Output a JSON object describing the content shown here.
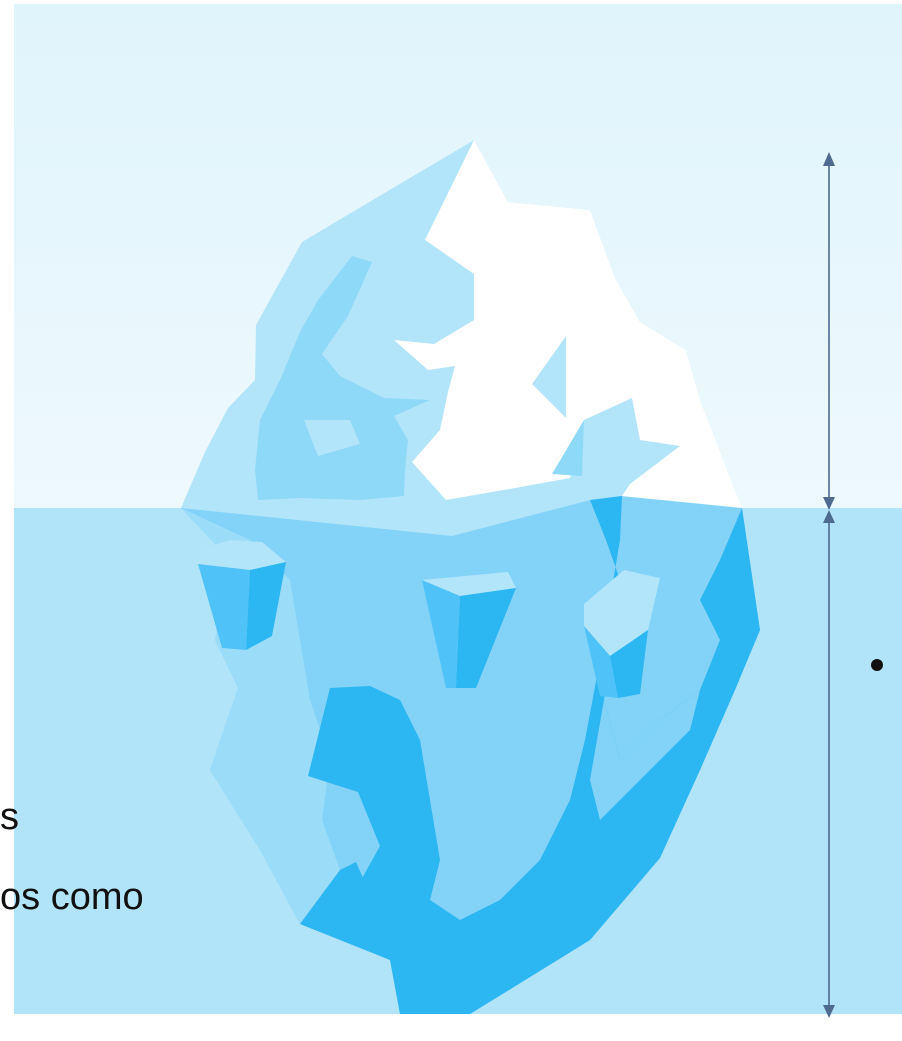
{
  "diagram": {
    "type": "iceberg",
    "colors": {
      "sky_top": "#E0F4FC",
      "sky_bottom": "#EEF9FE",
      "water": "#B1E4F9",
      "ice_white": "#FFFFFF",
      "ice_light": "#B3E5FA",
      "ice_mid": "#8ED8F8",
      "ice_under": "#82D3F7",
      "ice_deep": "#2CB6F2",
      "ice_bright": "#4FC3F7",
      "arrow": "#4E6A8F"
    }
  },
  "text_fragments": {
    "line1": "s",
    "line2": "os como"
  },
  "bullet_symbol": "bullet-dot"
}
